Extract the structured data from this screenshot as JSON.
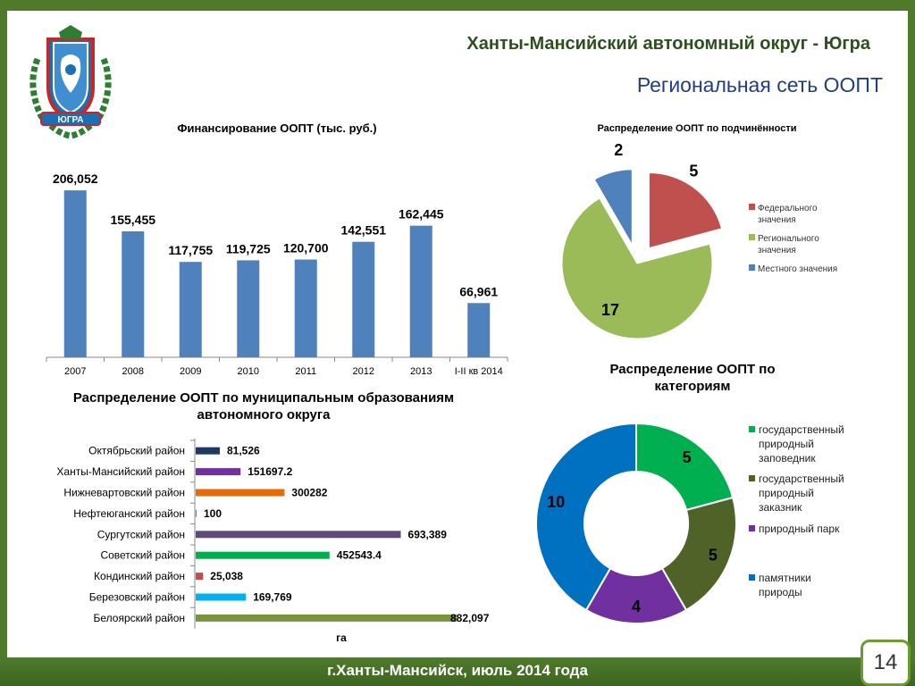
{
  "header": {
    "title": "Ханты-Мансийский автономный округ - Югра",
    "subtitle": "Региональная сеть ООПТ",
    "emblem_text": "ЮГРА"
  },
  "footer": {
    "text": "г.Ханты-Мансийск, июль 2014 года",
    "page_number": "14"
  },
  "colors": {
    "frame": "#4e7a2a",
    "bar_blue": "#4f81bd"
  },
  "chart_data": [
    {
      "type": "bar",
      "title": "Финансирование ООПТ (тыс. руб.)",
      "categories": [
        "2007",
        "2008",
        "2009",
        "2010",
        "2011",
        "2012",
        "2013",
        "I-II кв 2014"
      ],
      "values": [
        206052,
        155455,
        117755,
        119725,
        120700,
        142551,
        162445,
        66961
      ],
      "labels": [
        "206,052",
        "155,455",
        "117,755",
        "119,725",
        "120,700",
        "142,551",
        "162,445",
        "66,961"
      ],
      "ylim": [
        0,
        215000
      ],
      "color": "#4f81bd"
    },
    {
      "type": "pie",
      "title": "Распределение ООПТ по подчинённости",
      "categories": [
        "Федерального значения",
        "Регионального значения",
        "Местного значения"
      ],
      "values": [
        5,
        17,
        2
      ],
      "colors": [
        "#c0504d",
        "#9bbb59",
        "#4f81bd"
      ],
      "legend": "right"
    },
    {
      "type": "bar",
      "orientation": "horizontal",
      "title": "Распределение ООПТ по муниципальным образованиям автономного округа",
      "xlabel": "га",
      "categories": [
        "Октябрьский район",
        "Ханты-Мансийский район",
        "Нижневартовский район",
        "Нефтеюганский район",
        "Сургутский район",
        "Советский район",
        "Кондинский район",
        "Березовский район",
        "Белоярский район"
      ],
      "values": [
        81526,
        151697.2,
        300282,
        100,
        693389,
        452543.4,
        25038,
        169769,
        882097
      ],
      "labels": [
        "81,526",
        "151697.2",
        "300282",
        "100",
        "693,389",
        "452543.4",
        "25,038",
        "169,769",
        "882,097"
      ],
      "colors": [
        "#1f3864",
        "#7030a0",
        "#e46c0a",
        "#4f81bd",
        "#604a7b",
        "#00b050",
        "#c0504d",
        "#00b0f0",
        "#77933c"
      ],
      "xlim": [
        0,
        882097
      ]
    },
    {
      "type": "pie",
      "subtype": "donut",
      "title": "Распределение ООПТ по категориям",
      "categories": [
        "государственный природный заповедник",
        "государственный природный заказник",
        "природный парк",
        "памятники природы"
      ],
      "legend_lines": [
        [
          "государственный",
          "природный",
          "заповедник"
        ],
        [
          "государственный",
          "природный",
          "заказник"
        ],
        [
          "природный парк"
        ],
        [
          "памятники",
          "природы"
        ]
      ],
      "values": [
        5,
        5,
        4,
        10
      ],
      "colors": [
        "#00b050",
        "#4f6228",
        "#7030a0",
        "#0070c0"
      ],
      "legend": "right"
    }
  ]
}
